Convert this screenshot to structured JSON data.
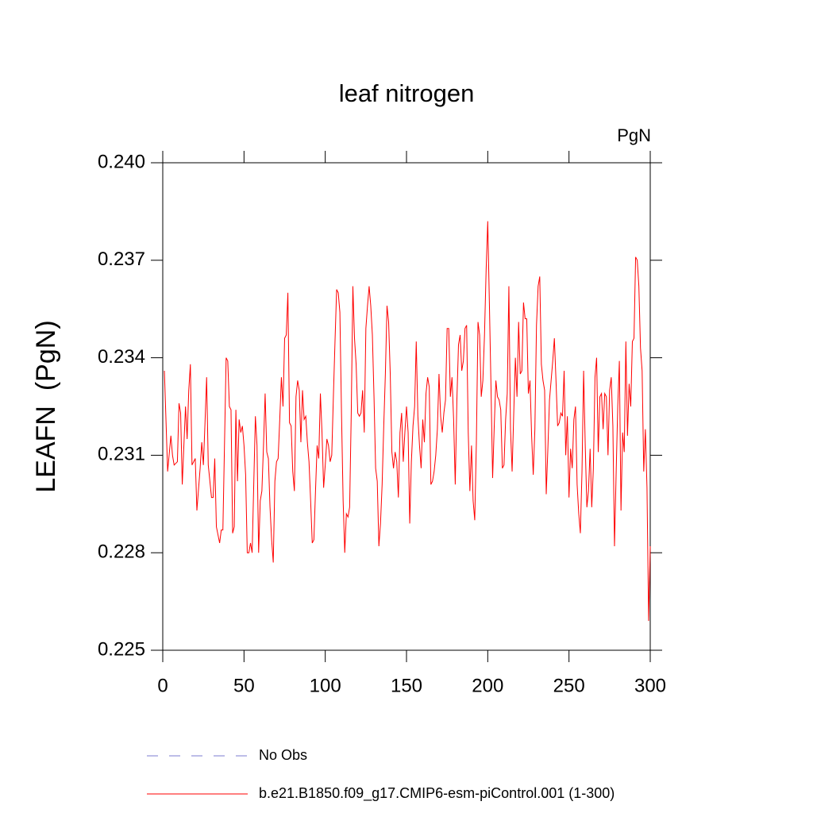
{
  "chart_data": {
    "type": "line",
    "title": "leaf nitrogen",
    "units": "PgN",
    "y_label": "LEAFN  (PgN)",
    "xlim": [
      0,
      300
    ],
    "xticks": [
      0,
      50,
      100,
      150,
      200,
      250,
      300
    ],
    "ylim": [
      0.225,
      0.24
    ],
    "yticks": [
      0.225,
      0.228,
      0.231,
      0.234,
      0.237,
      {
        "value": 0.24,
        "label": "0.240"
      }
    ],
    "x": [
      1,
      3,
      5,
      6,
      7,
      9,
      10,
      11,
      12,
      14,
      15,
      16,
      17,
      18,
      20,
      21,
      23,
      24,
      25,
      26,
      27,
      28,
      30,
      31,
      32,
      33,
      35,
      36,
      37,
      39,
      40,
      41,
      42,
      43,
      44,
      45,
      46,
      47,
      48,
      49,
      50,
      51,
      52,
      53,
      54,
      55,
      56,
      57,
      58,
      59,
      60,
      61,
      62,
      63,
      64,
      65,
      66,
      67,
      68,
      69,
      70,
      71,
      72,
      73,
      74,
      75,
      76,
      77,
      78,
      79,
      80,
      81,
      82,
      83,
      84,
      85,
      86,
      87,
      88,
      89,
      90,
      91,
      92,
      93,
      94,
      95,
      96,
      97,
      98,
      99,
      100,
      101,
      102,
      103,
      104,
      105,
      106,
      107,
      108,
      109,
      110,
      111,
      112,
      113,
      114,
      115,
      116,
      117,
      118,
      119,
      120,
      121,
      122,
      123,
      124,
      125,
      126,
      127,
      128,
      129,
      130,
      131,
      132,
      133,
      134,
      135,
      136,
      137,
      138,
      139,
      140,
      141,
      142,
      143,
      144,
      145,
      146,
      147,
      148,
      149,
      150,
      151,
      152,
      153,
      154,
      155,
      156,
      157,
      158,
      159,
      160,
      161,
      162,
      163,
      164,
      165,
      166,
      167,
      168,
      169,
      170,
      171,
      172,
      173,
      174,
      175,
      176,
      177,
      178,
      179,
      180,
      181,
      182,
      183,
      184,
      185,
      186,
      187,
      188,
      189,
      190,
      191,
      192,
      193,
      194,
      195,
      196,
      197,
      198,
      199,
      200,
      201,
      202,
      203,
      204,
      205,
      206,
      207,
      208,
      209,
      210,
      211,
      212,
      213,
      214,
      215,
      216,
      217,
      218,
      219,
      220,
      221,
      222,
      223,
      224,
      225,
      226,
      227,
      228,
      229,
      230,
      231,
      232,
      233,
      234,
      235,
      236,
      237,
      238,
      239,
      240,
      241,
      242,
      243,
      244,
      245,
      246,
      247,
      248,
      249,
      250,
      251,
      252,
      253,
      254,
      255,
      256,
      257,
      258,
      259,
      260,
      261,
      262,
      263,
      264,
      265,
      266,
      267,
      268,
      269,
      270,
      271,
      272,
      273,
      274,
      275,
      276,
      277,
      278,
      279,
      280,
      281,
      282,
      283,
      284,
      285,
      286,
      287,
      288,
      289,
      290,
      291,
      292,
      293,
      294,
      295,
      296,
      297,
      298,
      299,
      300
    ],
    "series": [
      {
        "name": "b.e21.B1850.f09_g17.CMIP6-esm-piControl.001 (1-300)",
        "color": "#ff0000",
        "values": [
          0.2336,
          0.2305,
          0.2316,
          0.231,
          0.2307,
          0.2308,
          0.2326,
          0.2323,
          0.2301,
          0.2325,
          0.2315,
          0.233,
          0.2338,
          0.2307,
          0.2309,
          0.2293,
          0.2306,
          0.2314,
          0.2307,
          0.232,
          0.2334,
          0.2307,
          0.2297,
          0.2297,
          0.2309,
          0.2288,
          0.2283,
          0.2287,
          0.2287,
          0.234,
          0.2339,
          0.2325,
          0.2324,
          0.2286,
          0.2288,
          0.2324,
          0.2302,
          0.2321,
          0.2317,
          0.2319,
          0.2313,
          0.2304,
          0.228,
          0.228,
          0.2283,
          0.228,
          0.2301,
          0.2322,
          0.2313,
          0.228,
          0.2296,
          0.2299,
          0.2313,
          0.2329,
          0.2311,
          0.2309,
          0.2294,
          0.2284,
          0.2277,
          0.2302,
          0.2308,
          0.2309,
          0.2321,
          0.2334,
          0.2325,
          0.2346,
          0.2347,
          0.236,
          0.232,
          0.2319,
          0.2305,
          0.2299,
          0.2328,
          0.2333,
          0.233,
          0.2314,
          0.233,
          0.2321,
          0.2322,
          0.2314,
          0.2308,
          0.2296,
          0.2283,
          0.2284,
          0.2299,
          0.2313,
          0.2309,
          0.2329,
          0.2317,
          0.23,
          0.2307,
          0.2315,
          0.2313,
          0.2308,
          0.231,
          0.2328,
          0.2345,
          0.2361,
          0.236,
          0.2354,
          0.2323,
          0.2296,
          0.228,
          0.2292,
          0.2291,
          0.2294,
          0.2323,
          0.2362,
          0.2346,
          0.2338,
          0.2323,
          0.2322,
          0.2323,
          0.233,
          0.2317,
          0.2349,
          0.2356,
          0.2362,
          0.2356,
          0.2347,
          0.2328,
          0.2306,
          0.2302,
          0.2282,
          0.2289,
          0.2301,
          0.2319,
          0.2335,
          0.2356,
          0.2351,
          0.2335,
          0.2311,
          0.2306,
          0.2311,
          0.2308,
          0.2297,
          0.2317,
          0.2323,
          0.2308,
          0.2317,
          0.2325,
          0.2317,
          0.2289,
          0.2308,
          0.2319,
          0.2325,
          0.2345,
          0.2322,
          0.2313,
          0.2306,
          0.2321,
          0.2314,
          0.2329,
          0.2334,
          0.2331,
          0.2301,
          0.2302,
          0.2305,
          0.231,
          0.2318,
          0.2335,
          0.2322,
          0.2317,
          0.2323,
          0.2327,
          0.2349,
          0.2349,
          0.2328,
          0.2334,
          0.2321,
          0.2301,
          0.2327,
          0.2344,
          0.2347,
          0.2336,
          0.2339,
          0.2349,
          0.235,
          0.2317,
          0.2299,
          0.2313,
          0.2296,
          0.229,
          0.2314,
          0.2351,
          0.2347,
          0.2328,
          0.2333,
          0.2347,
          0.2367,
          0.2382,
          0.2357,
          0.2331,
          0.2303,
          0.2319,
          0.2333,
          0.2328,
          0.2327,
          0.2324,
          0.2306,
          0.2307,
          0.2321,
          0.2329,
          0.2362,
          0.2318,
          0.2305,
          0.2323,
          0.234,
          0.2328,
          0.2351,
          0.2335,
          0.2336,
          0.2357,
          0.2352,
          0.2352,
          0.2329,
          0.2333,
          0.2316,
          0.2304,
          0.2318,
          0.235,
          0.2362,
          0.2365,
          0.2338,
          0.2333,
          0.233,
          0.2298,
          0.2312,
          0.2327,
          0.2333,
          0.2339,
          0.2346,
          0.2333,
          0.2319,
          0.232,
          0.2323,
          0.2322,
          0.2336,
          0.231,
          0.2322,
          0.2297,
          0.2312,
          0.2306,
          0.2321,
          0.2325,
          0.2301,
          0.2292,
          0.2286,
          0.2305,
          0.2336,
          0.2313,
          0.2294,
          0.2299,
          0.2312,
          0.2294,
          0.2306,
          0.2334,
          0.234,
          0.2311,
          0.2328,
          0.2329,
          0.2318,
          0.2329,
          0.2328,
          0.231,
          0.233,
          0.2334,
          0.2319,
          0.2282,
          0.2304,
          0.2325,
          0.2339,
          0.2293,
          0.2317,
          0.2311,
          0.2345,
          0.2316,
          0.2332,
          0.2325,
          0.2345,
          0.2346,
          0.2371,
          0.237,
          0.2362,
          0.2343,
          0.2336,
          0.2305,
          0.2318,
          0.23,
          0.2259,
          0.2282
        ]
      }
    ],
    "legend": [
      {
        "name": "No Obs",
        "color": "#7b7bd0",
        "dashed": true
      }
    ]
  }
}
